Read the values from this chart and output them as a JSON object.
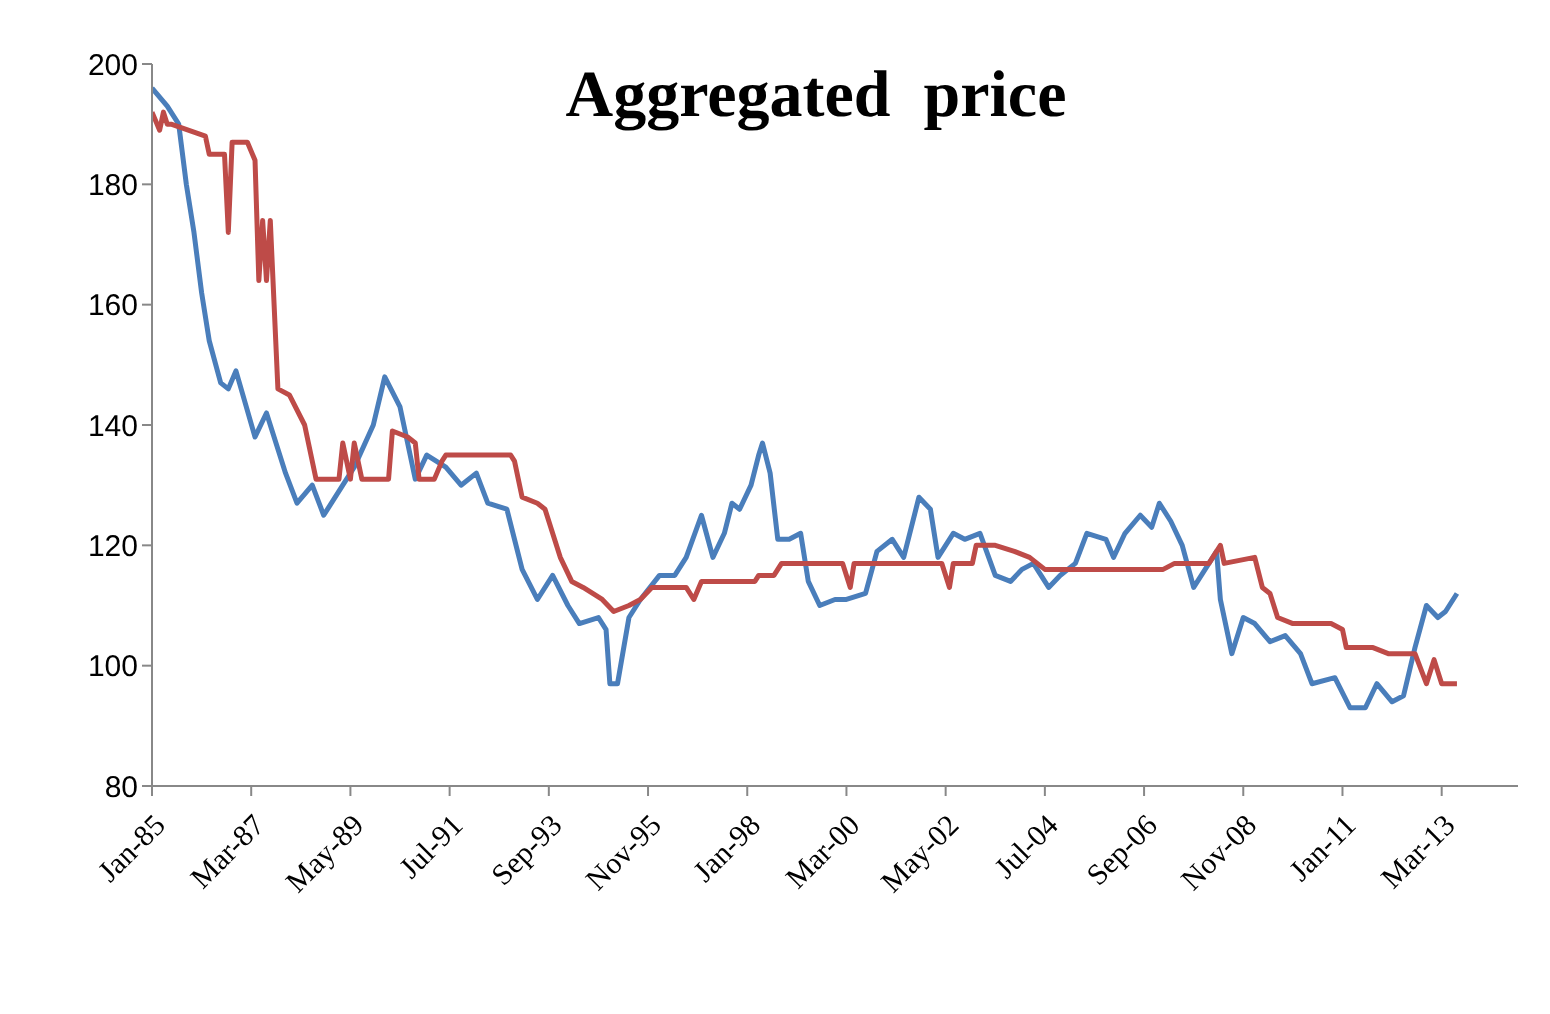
{
  "chart_data": {
    "type": "line",
    "title": "Aggregated  price",
    "marker": "none",
    "line_style": "solid",
    "xlim": [
      "1985-01",
      "2014-11"
    ],
    "xticks": [
      {
        "value": "1985-01",
        "label": "Jan-85"
      },
      {
        "value": "1987-03",
        "label": "Mar-87"
      },
      {
        "value": "1989-05",
        "label": "May-89"
      },
      {
        "value": "1991-07",
        "label": "Jul-91"
      },
      {
        "value": "1993-09",
        "label": "Sep-93"
      },
      {
        "value": "1995-11",
        "label": "Nov-95"
      },
      {
        "value": "1998-01",
        "label": "Jan-98"
      },
      {
        "value": "2000-03",
        "label": "Mar-00"
      },
      {
        "value": "2002-05",
        "label": "May-02"
      },
      {
        "value": "2004-07",
        "label": "Jul-04"
      },
      {
        "value": "2006-09",
        "label": "Sep-06"
      },
      {
        "value": "2008-11",
        "label": "Nov-08"
      },
      {
        "value": "2011-01",
        "label": "Jan-11"
      },
      {
        "value": "2013-03",
        "label": "Mar-13"
      }
    ],
    "ylim": [
      80,
      200
    ],
    "yticks": [
      80,
      100,
      120,
      140,
      160,
      180,
      200
    ],
    "series": [
      {
        "color": "#4a7ebb",
        "x": [
          "1985-01",
          "1985-05",
          "1985-08",
          "1985-10",
          "1985-12",
          "1986-02",
          "1986-04",
          "1986-07",
          "1986-09",
          "1986-11",
          "1987-04",
          "1987-07",
          "1987-12",
          "1988-03",
          "1988-07",
          "1988-10",
          "1989-03",
          "1989-06",
          "1989-11",
          "1990-02",
          "1990-06",
          "1990-10",
          "1991-01",
          "1991-06",
          "1991-10",
          "1992-02",
          "1992-05",
          "1992-10",
          "1993-02",
          "1993-06",
          "1993-10",
          "1994-02",
          "1994-05",
          "1994-10",
          "1994-12",
          "1995-01",
          "1995-03",
          "1995-06",
          "1995-09",
          "1996-02",
          "1996-06",
          "1996-09",
          "1997-01",
          "1997-04",
          "1997-07",
          "1997-09",
          "1997-11",
          "1998-02",
          "1998-04",
          "1998-05",
          "1998-07",
          "1998-09",
          "1998-12",
          "1999-03",
          "1999-05",
          "1999-08",
          "1999-12",
          "2000-03",
          "2000-08",
          "2000-11",
          "2001-03",
          "2001-06",
          "2001-10",
          "2002-01",
          "2002-03",
          "2002-07",
          "2002-10",
          "2003-02",
          "2003-06",
          "2003-10",
          "2004-01",
          "2004-04",
          "2004-08",
          "2004-11",
          "2005-03",
          "2005-06",
          "2005-11",
          "2006-01",
          "2006-04",
          "2006-08",
          "2006-11",
          "2007-01",
          "2007-04",
          "2007-07",
          "2007-10",
          "2008-01",
          "2008-04",
          "2008-05",
          "2008-08",
          "2008-11",
          "2009-02",
          "2009-06",
          "2009-10",
          "2010-02",
          "2010-05",
          "2010-11",
          "2011-03",
          "2011-07",
          "2011-10",
          "2012-02",
          "2012-05",
          "2012-08",
          "2012-11",
          "2013-02",
          "2013-04",
          "2013-07"
        ],
        "values": [
          196,
          193,
          190,
          180,
          172,
          162,
          154,
          147,
          146,
          149,
          138,
          142,
          132,
          127,
          130,
          125,
          130,
          133,
          140,
          148,
          143,
          131,
          135,
          133,
          130,
          132,
          127,
          126,
          116,
          111,
          115,
          110,
          107,
          108,
          106,
          97,
          97,
          108,
          111,
          115,
          115,
          118,
          125,
          118,
          122,
          127,
          126,
          130,
          135,
          137,
          132,
          121,
          121,
          122,
          114,
          110,
          111,
          111,
          112,
          119,
          121,
          118,
          128,
          126,
          118,
          122,
          121,
          122,
          115,
          114,
          116,
          117,
          113,
          115,
          117,
          122,
          121,
          118,
          122,
          125,
          123,
          127,
          124,
          120,
          113,
          116,
          119,
          111,
          102,
          108,
          107,
          104,
          105,
          102,
          97,
          98,
          93,
          93,
          97,
          94,
          95,
          103,
          110,
          108,
          109,
          112
        ]
      },
      {
        "color": "#be4b48",
        "x": [
          "1985-01",
          "1985-03",
          "1985-04",
          "1985-05",
          "1985-06",
          "1986-03",
          "1986-04",
          "1986-08",
          "1986-09",
          "1986-10",
          "1987-02",
          "1987-04",
          "1987-05",
          "1987-06",
          "1987-07",
          "1987-08",
          "1987-10",
          "1988-01",
          "1988-05",
          "1988-08",
          "1989-02",
          "1989-03",
          "1989-05",
          "1989-06",
          "1989-08",
          "1990-03",
          "1990-04",
          "1990-08",
          "1990-10",
          "1990-11",
          "1991-03",
          "1991-05",
          "1991-06",
          "1992-11",
          "1992-12",
          "1993-02",
          "1993-06",
          "1993-08",
          "1993-12",
          "1994-03",
          "1994-06",
          "1994-11",
          "1995-02",
          "1995-06",
          "1995-09",
          "1995-12",
          "1996-09",
          "1996-11",
          "1997-01",
          "1998-03",
          "1998-04",
          "1998-08",
          "1998-10",
          "2000-02",
          "2000-04",
          "2000-05",
          "2002-04",
          "2002-06",
          "2002-07",
          "2002-12",
          "2003-01",
          "2003-06",
          "2003-11",
          "2004-03",
          "2004-07",
          "2007-02",
          "2007-05",
          "2008-02",
          "2008-05",
          "2008-06",
          "2009-02",
          "2009-04",
          "2009-06",
          "2009-08",
          "2009-12",
          "2010-10",
          "2011-01",
          "2011-02",
          "2011-09",
          "2012-01",
          "2012-08",
          "2012-11",
          "2013-01",
          "2013-03",
          "2013-07"
        ],
        "values": [
          192,
          189,
          192,
          190,
          190,
          188,
          185,
          185,
          172,
          187,
          187,
          184,
          164,
          174,
          164,
          174,
          146,
          145,
          140,
          131,
          131,
          137,
          131,
          137,
          131,
          131,
          139,
          138,
          137,
          131,
          131,
          134,
          135,
          135,
          134,
          128,
          127,
          126,
          118,
          114,
          113,
          111,
          109,
          110,
          111,
          113,
          113,
          111,
          114,
          114,
          115,
          115,
          117,
          117,
          113,
          117,
          117,
          113,
          117,
          117,
          120,
          120,
          119,
          118,
          116,
          116,
          117,
          117,
          120,
          117,
          118,
          113,
          112,
          108,
          107,
          107,
          106,
          103,
          103,
          102,
          102,
          97,
          101,
          97,
          97
        ]
      }
    ]
  }
}
